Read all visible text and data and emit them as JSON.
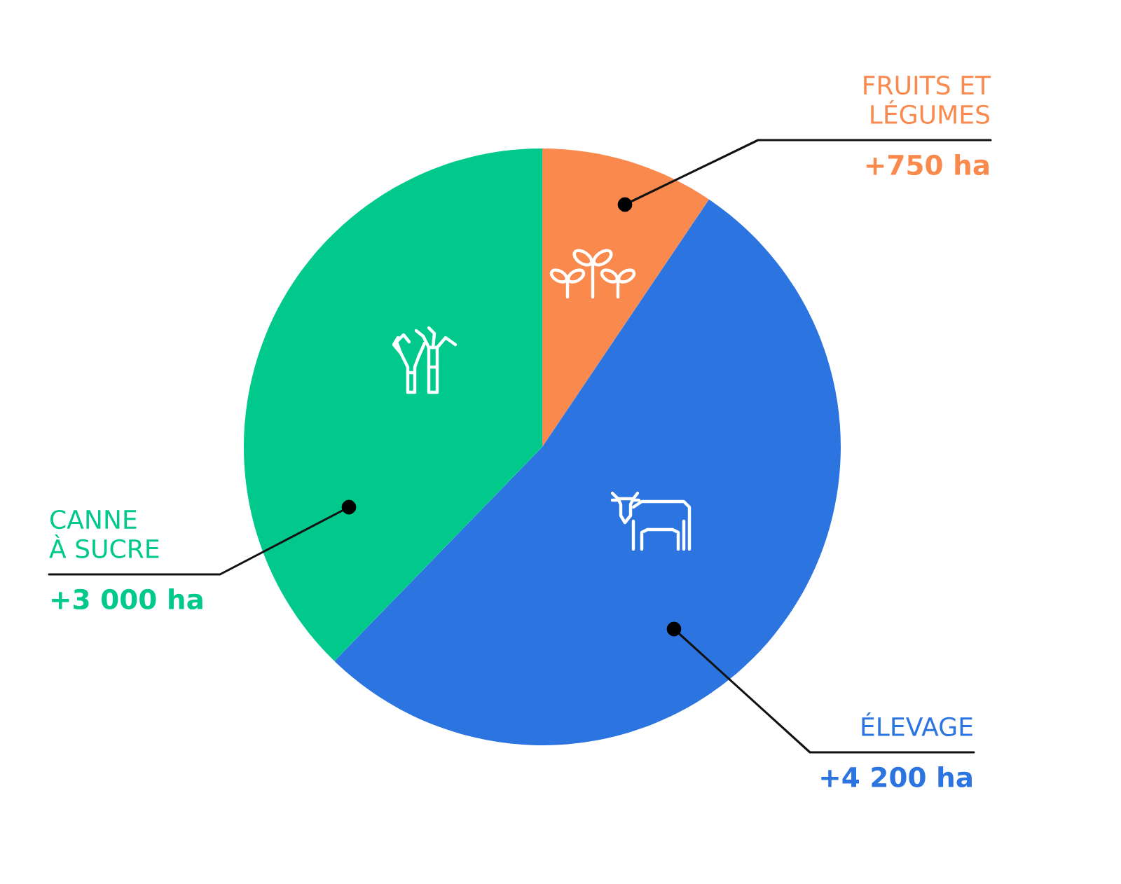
{
  "chart_data": {
    "type": "pie",
    "categories": [
      "FRUITS ET\nLÉGUMES",
      "ÉLEVAGE",
      "CANNE\nÀ SUCRE"
    ],
    "values": [
      750,
      4200,
      3000
    ],
    "colors": [
      "#f9894d",
      "#2c74df",
      "#00c98b"
    ],
    "value_labels": [
      "+750 ha",
      "+4 200 ha",
      "+3 000 ha"
    ]
  }
}
